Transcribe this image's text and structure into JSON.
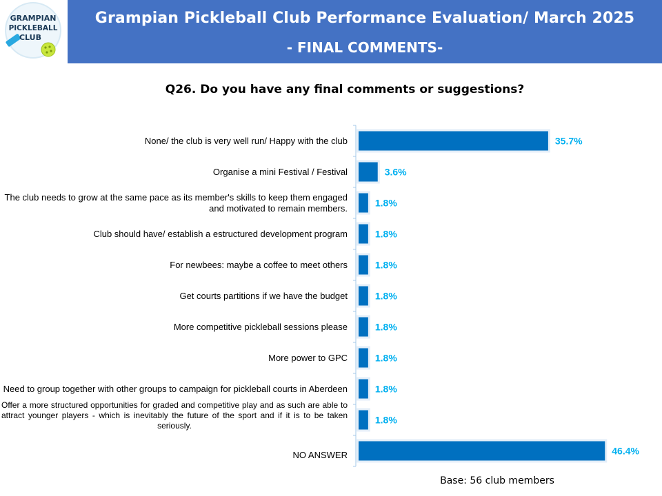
{
  "header": {
    "title": "Grampian Pickleball Club Performance Evaluation/ March 2025",
    "subtitle": "- FINAL COMMENTS-",
    "logo_lines": [
      "GRAMPIAN",
      "PICKLEBALL",
      "CLUB"
    ]
  },
  "footer": {
    "base": "Base: 56 club members"
  },
  "colors": {
    "header_band": "#4472c4",
    "bar_fill": "#0070c0",
    "value_label": "#00b0f0"
  },
  "chart_data": {
    "type": "bar",
    "orientation": "horizontal",
    "title": "Q26. Do you have any final comments or suggestions?",
    "categories": [
      "None/ the club is very well run/ Happy with the club",
      "Organise a mini Festival / Festival",
      "The club needs to grow at the same pace as its member's skills to keep them engaged and motivated to remain members.",
      "Club should have/ establish a estructured development program",
      "For newbees: maybe a coffee to meet others",
      "Get courts partitions if we have the budget",
      "More competitive pickleball sessions please",
      "More power to GPC",
      "Need to group together with other groups to campaign for pickleball courts in Aberdeen",
      "Offer a more structured opportunities for graded and competitive play and as such are able to attract younger players - which is inevitably the future of the sport and if it is to be taken seriously.",
      "NO ANSWER"
    ],
    "values": [
      35.7,
      3.6,
      1.8,
      1.8,
      1.8,
      1.8,
      1.8,
      1.8,
      1.8,
      1.8,
      46.4
    ],
    "value_labels": [
      "35.7%",
      "3.6%",
      "1.8%",
      "1.8%",
      "1.8%",
      "1.8%",
      "1.8%",
      "1.8%",
      "1.8%",
      "1.8%",
      "46.4%"
    ],
    "xlim": [
      0,
      47
    ],
    "grid": false,
    "legend": "none"
  }
}
